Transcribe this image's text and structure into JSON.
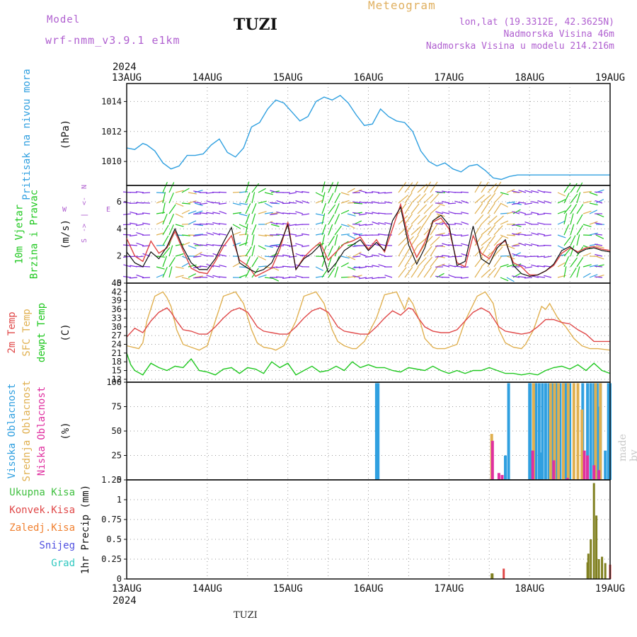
{
  "header": {
    "model_label": "Model",
    "model_name": "wrf-nmm_v3.9.1 e1km",
    "station": "TUZI",
    "product": "Meteogram",
    "lonlat": "lon,lat (19.3312E, 42.3625N)",
    "elevation": "Nadmorska Visina 46m",
    "elevation_model": "Nadmorska Visina u modelu 214.216m",
    "year_top": "2024",
    "year_bottom": "2024",
    "footer_station": "TUZI",
    "credit": "made by Angel"
  },
  "colors": {
    "pressure": "#30a0e0",
    "t2m": "#e04848",
    "sfc": "#e0b050",
    "dewpt": "#20c820",
    "cloud_high": "#30a0e0",
    "cloud_mid": "#e0b050",
    "cloud_low": "#e030a0",
    "precip_total": "#40c040",
    "precip_conv": "#e04848",
    "precip_frz": "#f08030",
    "snow": "#5050e0",
    "graupel": "#30c8c0",
    "wind_label": "#20c820",
    "wind_dir": "#b060d0",
    "precip_bar": "#808020"
  },
  "chart_data": [
    {
      "type": "line",
      "panel": "pressure",
      "title_lines": [
        "Pritisak na nivou mora"
      ],
      "unit": "(hPa)",
      "x_ticks": [
        "13AUG",
        "14AUG",
        "15AUG",
        "16AUG",
        "17AUG",
        "18AUG",
        "19AUG"
      ],
      "ylim": [
        1008.4,
        1015.2
      ],
      "y_ticks": [
        1010,
        1012,
        1014
      ],
      "series": [
        {
          "color_key": "pressure",
          "x": [
            0,
            0.1,
            0.2,
            0.25,
            0.35,
            0.45,
            0.55,
            0.65,
            0.75,
            0.85,
            0.95,
            1.05,
            1.15,
            1.25,
            1.35,
            1.45,
            1.55,
            1.65,
            1.75,
            1.85,
            1.95,
            2.05,
            2.15,
            2.25,
            2.35,
            2.45,
            2.55,
            2.65,
            2.75,
            2.85,
            2.95,
            3.05,
            3.15,
            3.25,
            3.35,
            3.45,
            3.55,
            3.65,
            3.75,
            3.85,
            3.95,
            4.05,
            4.15,
            4.25,
            4.35,
            4.45,
            4.55,
            4.65,
            4.75,
            4.85,
            4.95,
            5.05,
            5.15,
            5.25,
            5.35,
            5.45,
            5.55,
            5.65,
            5.75,
            5.85,
            5.95,
            6.0
          ],
          "y": [
            1010.9,
            1010.8,
            1011.2,
            1011.1,
            1010.7,
            1009.9,
            1009.5,
            1009.7,
            1010.4,
            1010.4,
            1010.5,
            1011.1,
            1011.5,
            1010.6,
            1010.3,
            1010.9,
            1012.3,
            1012.6,
            1013.5,
            1014.1,
            1013.9,
            1013.3,
            1012.7,
            1013.0,
            1014.0,
            1014.3,
            1014.1,
            1014.4,
            1013.9,
            1013.1,
            1012.4,
            1012.5,
            1013.5,
            1013.0,
            1012.7,
            1012.6,
            1012.0,
            1010.7,
            1010.0,
            1009.7,
            1009.9,
            1009.5,
            1009.3,
            1009.7,
            1009.8,
            1009.4,
            1008.9,
            1008.8,
            1009.0,
            1009.1,
            1009.1,
            1009.1,
            1009.1,
            1009.1,
            1009.1,
            1009.1,
            1009.1,
            1009.1,
            1009.1,
            1009.1,
            1009.1,
            1009.1
          ]
        }
      ]
    },
    {
      "type": "line",
      "panel": "wind",
      "title_lines": [
        "10m Vjetar",
        "Brzina i Pravac"
      ],
      "unit": "(m/s)",
      "compass": [
        "N",
        "<-",
        "|",
        "->",
        "S",
        "W",
        "E"
      ],
      "ylim": [
        0,
        7.2
      ],
      "y_ticks": [
        0,
        2,
        4,
        6
      ],
      "series": [
        {
          "color_key": "t2m",
          "x": [
            0,
            0.1,
            0.2,
            0.3,
            0.4,
            0.5,
            0.6,
            0.7,
            0.8,
            0.9,
            1.0,
            1.1,
            1.2,
            1.3,
            1.4,
            1.5,
            1.6,
            1.7,
            1.8,
            1.9,
            2.0,
            2.1,
            2.2,
            2.3,
            2.4,
            2.5,
            2.6,
            2.7,
            2.8,
            2.9,
            3.0,
            3.1,
            3.2,
            3.3,
            3.4,
            3.5,
            3.6,
            3.7,
            3.8,
            3.9,
            4.0,
            4.1,
            4.2,
            4.3,
            4.4,
            4.5,
            4.6,
            4.7,
            4.8,
            4.9,
            5.0,
            5.1,
            5.2,
            5.3,
            5.4,
            5.5,
            5.6,
            5.7,
            5.8,
            5.9,
            6.0
          ],
          "y": [
            3.3,
            2.0,
            1.6,
            3.1,
            2.2,
            2.6,
            3.8,
            2.4,
            1.1,
            0.8,
            0.7,
            1.6,
            2.7,
            3.5,
            1.7,
            1.3,
            0.5,
            0.8,
            1.1,
            2.5,
            4.5,
            1.0,
            1.9,
            2.5,
            3.0,
            1.7,
            2.3,
            2.9,
            3.1,
            3.4,
            2.5,
            3.2,
            2.3,
            4.0,
            5.8,
            3.3,
            1.9,
            3.0,
            4.5,
            4.8,
            4.0,
            1.5,
            1.2,
            3.5,
            2.2,
            1.8,
            2.8,
            3.1,
            1.5,
            1.2,
            0.6,
            0.6,
            0.9,
            1.3,
            2.2,
            2.6,
            2.3,
            2.6,
            2.7,
            2.5,
            2.4
          ]
        },
        {
          "color_key": "black",
          "x": [
            0,
            0.1,
            0.2,
            0.3,
            0.4,
            0.5,
            0.6,
            0.7,
            0.8,
            0.9,
            1.0,
            1.1,
            1.2,
            1.3,
            1.4,
            1.5,
            1.6,
            1.7,
            1.8,
            1.9,
            2.0,
            2.1,
            2.2,
            2.3,
            2.4,
            2.5,
            2.6,
            2.7,
            2.8,
            2.9,
            3.0,
            3.1,
            3.2,
            3.3,
            3.4,
            3.5,
            3.6,
            3.7,
            3.8,
            3.9,
            4.0,
            4.1,
            4.2,
            4.3,
            4.4,
            4.5,
            4.6,
            4.7,
            4.8,
            4.9,
            5.0,
            5.1,
            5.2,
            5.3,
            5.4,
            5.5,
            5.6,
            5.7,
            5.8,
            5.9,
            6.0
          ],
          "y": [
            2.3,
            1.5,
            1.2,
            2.3,
            1.8,
            2.7,
            4.0,
            2.6,
            1.5,
            1.0,
            1.0,
            1.8,
            3.0,
            4.1,
            1.5,
            1.1,
            0.8,
            1.0,
            1.5,
            2.8,
            4.3,
            1.0,
            1.8,
            2.2,
            2.8,
            0.8,
            1.5,
            2.4,
            2.8,
            3.2,
            2.4,
            3.0,
            2.4,
            4.6,
            5.6,
            2.8,
            1.4,
            2.6,
            4.6,
            5.0,
            4.3,
            1.3,
            1.6,
            4.2,
            1.8,
            1.4,
            2.6,
            3.2,
            1.3,
            0.7,
            0.5,
            0.6,
            0.9,
            1.4,
            2.4,
            2.7,
            2.2,
            2.5,
            2.6,
            2.4,
            2.3
          ]
        }
      ]
    },
    {
      "type": "line",
      "panel": "temperature",
      "title_lines": [
        "2m Temp",
        "SFC Temp",
        "dewpt Temp"
      ],
      "unit": "(C)",
      "ylim": [
        11,
        45
      ],
      "y_ticks": [
        12,
        15,
        18,
        21,
        24,
        27,
        30,
        33,
        36,
        39,
        42,
        45
      ],
      "series": [
        {
          "color_key": "sfc",
          "x": [
            0,
            0.15,
            0.2,
            0.25,
            0.35,
            0.45,
            0.5,
            0.55,
            0.62,
            0.7,
            0.8,
            0.85,
            0.9,
            1.0,
            1.1,
            1.2,
            1.35,
            1.45,
            1.55,
            1.62,
            1.7,
            1.8,
            1.85,
            1.95,
            2.1,
            2.2,
            2.35,
            2.45,
            2.55,
            2.62,
            2.7,
            2.8,
            2.85,
            2.95,
            3.1,
            3.2,
            3.35,
            3.45,
            3.5,
            3.55,
            3.65,
            3.7,
            3.8,
            3.85,
            3.95,
            4.1,
            4.2,
            4.35,
            4.45,
            4.55,
            4.62,
            4.7,
            4.8,
            4.9,
            4.95,
            5.05,
            5.15,
            5.2,
            5.25,
            5.35,
            5.45,
            5.55,
            5.65,
            5.75,
            5.85,
            6.0
          ],
          "y": [
            23.5,
            22.5,
            24.5,
            32,
            40.5,
            42,
            40,
            37,
            29,
            24,
            23,
            22.5,
            22,
            23.5,
            32,
            40.5,
            42,
            38,
            29,
            24.5,
            23,
            22.5,
            22,
            23.5,
            32,
            40.5,
            42,
            38,
            29,
            25,
            23.5,
            22.5,
            22.5,
            25,
            33,
            41,
            42,
            36,
            40,
            38,
            31,
            26,
            23,
            22.5,
            22.5,
            24,
            32,
            40.5,
            42,
            38,
            29,
            24.5,
            23,
            22.5,
            24,
            29,
            37,
            36,
            38,
            33,
            30,
            26,
            23.5,
            22.5,
            22.5,
            22
          ]
        },
        {
          "color_key": "t2m",
          "x": [
            0,
            0.1,
            0.2,
            0.3,
            0.4,
            0.5,
            0.55,
            0.62,
            0.7,
            0.8,
            0.9,
            1.0,
            1.1,
            1.2,
            1.3,
            1.4,
            1.5,
            1.55,
            1.62,
            1.7,
            1.8,
            1.9,
            2.0,
            2.1,
            2.2,
            2.3,
            2.4,
            2.5,
            2.55,
            2.62,
            2.7,
            2.8,
            2.9,
            3.0,
            3.1,
            3.2,
            3.3,
            3.4,
            3.5,
            3.55,
            3.62,
            3.7,
            3.8,
            3.9,
            4.0,
            4.1,
            4.2,
            4.3,
            4.4,
            4.5,
            4.55,
            4.62,
            4.7,
            4.8,
            4.9,
            5.0,
            5.1,
            5.2,
            5.3,
            5.4,
            5.5,
            5.6,
            5.7,
            5.8,
            5.9,
            6.0
          ],
          "y": [
            26.5,
            29.5,
            28,
            32,
            35,
            36.5,
            35,
            32,
            29,
            28.5,
            27.5,
            27.5,
            30,
            33,
            35.5,
            36.5,
            35,
            33,
            30,
            28.5,
            28,
            27.5,
            27.5,
            30,
            33,
            35.5,
            36.5,
            35,
            33,
            30,
            28.5,
            28,
            27.5,
            27.5,
            30,
            33,
            35.5,
            34,
            36.5,
            36,
            33,
            30,
            28.5,
            28,
            28,
            29,
            32,
            35,
            36.5,
            35,
            33,
            30,
            28.5,
            28,
            27.5,
            28,
            30,
            32.5,
            32.5,
            31.5,
            31,
            29,
            27.5,
            25,
            25,
            25
          ]
        },
        {
          "color_key": "dewpt",
          "x": [
            0,
            0.05,
            0.1,
            0.2,
            0.3,
            0.4,
            0.5,
            0.6,
            0.7,
            0.8,
            0.9,
            1.0,
            1.1,
            1.2,
            1.3,
            1.4,
            1.5,
            1.6,
            1.7,
            1.8,
            1.9,
            2.0,
            2.1,
            2.2,
            2.3,
            2.4,
            2.5,
            2.6,
            2.7,
            2.8,
            2.9,
            3.0,
            3.1,
            3.2,
            3.3,
            3.4,
            3.5,
            3.6,
            3.7,
            3.8,
            3.9,
            4.0,
            4.1,
            4.2,
            4.3,
            4.4,
            4.5,
            4.6,
            4.7,
            4.8,
            4.9,
            5.0,
            5.1,
            5.2,
            5.3,
            5.4,
            5.5,
            5.6,
            5.7,
            5.8,
            5.9,
            6.0
          ],
          "y": [
            21,
            17,
            15,
            13.5,
            17.5,
            16,
            15,
            16.5,
            16,
            19,
            15,
            14.5,
            13.5,
            15.5,
            16,
            14,
            16,
            15.5,
            14,
            18,
            16,
            17.5,
            13.5,
            15,
            16.5,
            14.5,
            15,
            16.5,
            15,
            18,
            16,
            17,
            16,
            16,
            15,
            14.5,
            16,
            15.5,
            15,
            16.5,
            15,
            14,
            15,
            14,
            15,
            15,
            16,
            15,
            14,
            14,
            13.5,
            14,
            13.5,
            15,
            16,
            16.5,
            15.5,
            17,
            15,
            17.5,
            15,
            14
          ]
        }
      ]
    },
    {
      "type": "bar",
      "panel": "cloud",
      "title_lines": [
        "Visoka Oblacnost",
        "Srednja Oblacnost",
        "Niska Oblacnost"
      ],
      "unit": "(%)",
      "ylim": [
        0,
        100
      ],
      "y_ticks": [
        0,
        25,
        50,
        75,
        100
      ],
      "series": [
        {
          "color_key": "cloud_high",
          "x": [
            3.1,
            3.12,
            4.7,
            4.74,
            5.0,
            5.01,
            5.08,
            5.12,
            5.13,
            5.16,
            5.2,
            5.24,
            5.28,
            5.32,
            5.34,
            5.38,
            5.42,
            5.44,
            5.46,
            5.48,
            5.5,
            5.66,
            5.72,
            5.76,
            5.8,
            5.84,
            5.86,
            5.88,
            5.94,
            5.98,
            6.0
          ],
          "y": [
            99,
            99,
            25,
            99,
            99,
            99,
            99,
            99,
            28,
            99,
            99,
            99,
            99,
            99,
            99,
            99,
            99,
            99,
            99,
            99,
            99,
            99,
            99,
            99,
            99,
            99,
            75,
            99,
            30,
            99,
            99
          ]
        },
        {
          "color_key": "cloud_mid",
          "x": [
            4.53,
            5.05,
            5.26,
            5.31,
            5.36,
            5.42,
            5.48,
            5.55,
            5.6,
            5.65,
            5.82,
            5.88
          ],
          "y": [
            47,
            99,
            99,
            99,
            99,
            99,
            99,
            99,
            99,
            72,
            99,
            99
          ]
        },
        {
          "color_key": "cloud_low",
          "x": [
            4.54,
            4.62,
            4.66,
            5.04,
            5.3,
            5.47,
            5.68,
            5.72,
            5.8,
            5.86
          ],
          "y": [
            40,
            7,
            5,
            30,
            20,
            2,
            30,
            25,
            15,
            10
          ]
        }
      ]
    },
    {
      "type": "bar",
      "panel": "precip",
      "title_lines": [
        "Ukupna Kisa",
        "Konvek.Kisa",
        "Zaledj.Kisa",
        "Snijeg",
        "Grad"
      ],
      "unit": "1hr Precip (mm)",
      "ylim": [
        0,
        1.25
      ],
      "y_ticks": [
        0,
        0.25,
        0.5,
        0.75,
        1,
        1.25
      ],
      "x_ticks": [
        "13AUG",
        "14AUG",
        "15AUG",
        "16AUG",
        "17AUG",
        "18AUG",
        "19AUG"
      ],
      "series": [
        {
          "color_key": "precip_bar",
          "x": [
            4.53,
            4.54,
            5.72,
            5.73,
            5.76,
            5.8,
            5.83,
            5.86,
            5.9,
            5.94,
            6.0
          ],
          "y": [
            0.07,
            0.07,
            0.21,
            0.32,
            0.5,
            1.21,
            0.8,
            0.25,
            0.28,
            0.2,
            0.1
          ]
        },
        {
          "color_key": "precip_conv",
          "x": [
            4.68,
            6.0
          ],
          "y": [
            0.13,
            0.18
          ]
        }
      ]
    }
  ]
}
